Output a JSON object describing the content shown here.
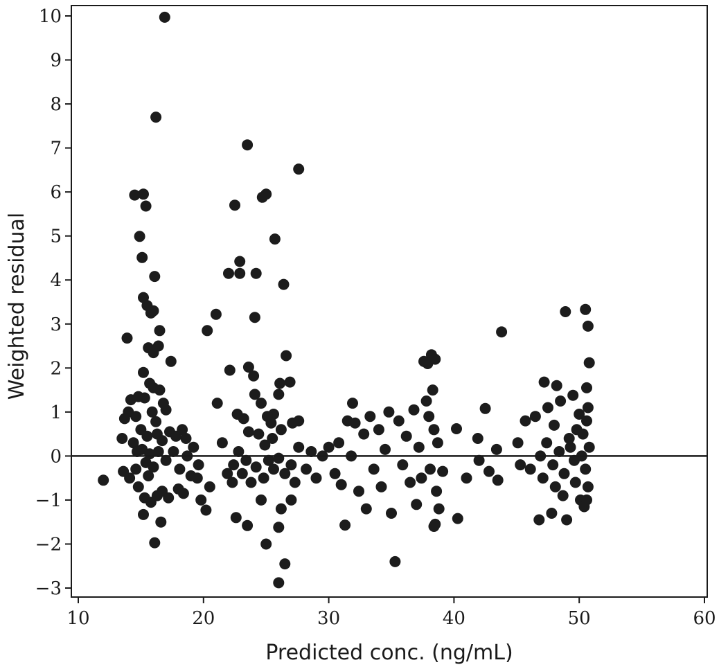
{
  "chart_data": {
    "type": "scatter",
    "xlabel": "Predicted conc. (ng/mL)",
    "ylabel": "Weighted residual",
    "xlim": [
      10,
      60
    ],
    "ylim": [
      -3,
      10
    ],
    "xticks": [
      10,
      20,
      30,
      40,
      50,
      60
    ],
    "yticks": [
      -3,
      -2,
      -1,
      0,
      1,
      2,
      3,
      4,
      5,
      6,
      7,
      8,
      9,
      10
    ],
    "ytick_labels": [
      "−3",
      "−2",
      "−1",
      "0",
      "1",
      "2",
      "3",
      "4",
      "5",
      "6",
      "7",
      "8",
      "9",
      "10"
    ],
    "reference_line_y": 0,
    "grid": false,
    "marker_color": "#1c1c1c",
    "points": [
      [
        12.0,
        -0.55
      ],
      [
        13.5,
        0.4
      ],
      [
        13.7,
        0.85
      ],
      [
        13.9,
        2.68
      ],
      [
        14.2,
        1.28
      ],
      [
        14.4,
        0.3
      ],
      [
        14.6,
        -0.3
      ],
      [
        14.5,
        5.93
      ],
      [
        14.9,
        4.99
      ],
      [
        15.1,
        4.51
      ],
      [
        15.2,
        5.95
      ],
      [
        15.4,
        5.68
      ],
      [
        15.2,
        3.6
      ],
      [
        15.5,
        3.42
      ],
      [
        15.8,
        3.25
      ],
      [
        16.0,
        3.3
      ],
      [
        16.1,
        4.08
      ],
      [
        16.2,
        7.7
      ],
      [
        16.9,
        9.97
      ],
      [
        16.5,
        2.85
      ],
      [
        16.4,
        2.5
      ],
      [
        15.6,
        2.46
      ],
      [
        16.0,
        2.35
      ],
      [
        17.4,
        2.15
      ],
      [
        15.2,
        1.9
      ],
      [
        15.7,
        1.65
      ],
      [
        16.0,
        1.55
      ],
      [
        16.5,
        1.5
      ],
      [
        14.8,
        1.35
      ],
      [
        15.3,
        1.32
      ],
      [
        16.8,
        1.2
      ],
      [
        17.0,
        1.05
      ],
      [
        14.0,
        1.0
      ],
      [
        14.6,
        0.9
      ],
      [
        15.9,
        1.0
      ],
      [
        16.2,
        0.78
      ],
      [
        15.0,
        0.6
      ],
      [
        15.5,
        0.45
      ],
      [
        16.3,
        0.5
      ],
      [
        16.7,
        0.35
      ],
      [
        17.3,
        0.55
      ],
      [
        17.8,
        0.45
      ],
      [
        18.3,
        0.6
      ],
      [
        18.6,
        0.4
      ],
      [
        19.2,
        0.2
      ],
      [
        13.6,
        -0.35
      ],
      [
        14.1,
        -0.5
      ],
      [
        14.8,
        -0.7
      ],
      [
        15.3,
        -0.95
      ],
      [
        15.8,
        -1.05
      ],
      [
        16.3,
        -0.9
      ],
      [
        16.7,
        -0.8
      ],
      [
        17.2,
        -0.95
      ],
      [
        16.6,
        -1.5
      ],
      [
        15.2,
        -1.33
      ],
      [
        16.1,
        -1.97
      ],
      [
        18.0,
        -0.75
      ],
      [
        18.4,
        -0.85
      ],
      [
        19.0,
        -0.45
      ],
      [
        19.5,
        -0.5
      ],
      [
        15.1,
        0.15
      ],
      [
        15.4,
        -0.15
      ],
      [
        15.7,
        0.05
      ],
      [
        16.0,
        -0.25
      ],
      [
        15.6,
        -0.45
      ],
      [
        14.7,
        0.1
      ],
      [
        16.4,
        0.1
      ],
      [
        17.0,
        -0.1
      ],
      [
        17.6,
        0.1
      ],
      [
        18.1,
        -0.3
      ],
      [
        18.7,
        0.0
      ],
      [
        19.6,
        -0.2
      ],
      [
        19.8,
        -1.0
      ],
      [
        20.2,
        -1.23
      ],
      [
        20.5,
        -0.7
      ],
      [
        20.3,
        2.85
      ],
      [
        21.0,
        3.22
      ],
      [
        21.1,
        1.2
      ],
      [
        21.5,
        0.3
      ],
      [
        21.9,
        -0.4
      ],
      [
        22.3,
        -0.6
      ],
      [
        22.1,
        1.95
      ],
      [
        22.0,
        4.15
      ],
      [
        22.5,
        5.7
      ],
      [
        22.9,
        4.42
      ],
      [
        22.9,
        4.15
      ],
      [
        23.5,
        7.07
      ],
      [
        24.2,
        4.15
      ],
      [
        24.1,
        3.15
      ],
      [
        24.7,
        5.88
      ],
      [
        25.0,
        5.95
      ],
      [
        25.7,
        4.93
      ],
      [
        26.4,
        3.9
      ],
      [
        26.6,
        2.28
      ],
      [
        26.9,
        1.68
      ],
      [
        26.1,
        1.65
      ],
      [
        26.0,
        1.4
      ],
      [
        25.6,
        0.95
      ],
      [
        27.1,
        0.75
      ],
      [
        27.6,
        6.52
      ],
      [
        27.6,
        0.8
      ],
      [
        23.6,
        2.02
      ],
      [
        24.0,
        1.82
      ],
      [
        24.1,
        1.4
      ],
      [
        24.6,
        1.2
      ],
      [
        25.1,
        0.9
      ],
      [
        25.4,
        0.75
      ],
      [
        22.7,
        0.95
      ],
      [
        23.2,
        0.85
      ],
      [
        23.6,
        0.55
      ],
      [
        24.4,
        0.5
      ],
      [
        24.9,
        0.25
      ],
      [
        25.5,
        0.4
      ],
      [
        26.2,
        0.6
      ],
      [
        22.6,
        -1.4
      ],
      [
        23.5,
        -1.58
      ],
      [
        24.6,
        -1.0
      ],
      [
        25.0,
        -2.0
      ],
      [
        26.0,
        -1.62
      ],
      [
        26.2,
        -1.2
      ],
      [
        26.5,
        -2.45
      ],
      [
        26.0,
        -2.88
      ],
      [
        27.0,
        -1.0
      ],
      [
        27.3,
        -0.6
      ],
      [
        22.4,
        -0.2
      ],
      [
        22.8,
        0.1
      ],
      [
        23.1,
        -0.4
      ],
      [
        23.4,
        -0.1
      ],
      [
        23.8,
        -0.6
      ],
      [
        24.2,
        -0.25
      ],
      [
        24.8,
        -0.5
      ],
      [
        25.2,
        -0.1
      ],
      [
        25.6,
        -0.3
      ],
      [
        26.0,
        -0.05
      ],
      [
        26.5,
        -0.4
      ],
      [
        27.0,
        -0.2
      ],
      [
        27.6,
        0.2
      ],
      [
        28.2,
        -0.3
      ],
      [
        28.6,
        0.1
      ],
      [
        29.0,
        -0.5
      ],
      [
        29.5,
        0.0
      ],
      [
        30.0,
        0.2
      ],
      [
        30.5,
        -0.4
      ],
      [
        30.8,
        0.3
      ],
      [
        31.0,
        -0.65
      ],
      [
        31.3,
        -1.57
      ],
      [
        31.5,
        0.8
      ],
      [
        31.9,
        1.2
      ],
      [
        32.1,
        0.75
      ],
      [
        31.8,
        0.0
      ],
      [
        32.4,
        -0.8
      ],
      [
        32.8,
        0.5
      ],
      [
        33.0,
        -1.2
      ],
      [
        33.3,
        0.9
      ],
      [
        33.6,
        -0.3
      ],
      [
        34.0,
        0.6
      ],
      [
        34.2,
        -0.7
      ],
      [
        34.5,
        0.15
      ],
      [
        34.8,
        1.0
      ],
      [
        35.0,
        -1.3
      ],
      [
        35.3,
        -2.4
      ],
      [
        35.6,
        0.8
      ],
      [
        35.9,
        -0.2
      ],
      [
        36.2,
        0.45
      ],
      [
        36.5,
        -0.6
      ],
      [
        36.8,
        1.05
      ],
      [
        37.0,
        -1.1
      ],
      [
        37.2,
        0.2
      ],
      [
        37.4,
        -0.5
      ],
      [
        37.6,
        2.15
      ],
      [
        37.9,
        2.1
      ],
      [
        38.2,
        2.3
      ],
      [
        38.5,
        2.2
      ],
      [
        38.3,
        1.5
      ],
      [
        37.8,
        1.25
      ],
      [
        38.0,
        0.9
      ],
      [
        38.4,
        0.6
      ],
      [
        38.7,
        0.3
      ],
      [
        38.1,
        -0.3
      ],
      [
        38.6,
        -0.8
      ],
      [
        38.8,
        -1.2
      ],
      [
        38.5,
        -1.55
      ],
      [
        38.4,
        -1.6
      ],
      [
        39.1,
        -0.35
      ],
      [
        40.2,
        0.62
      ],
      [
        40.3,
        -1.42
      ],
      [
        41.0,
        -0.5
      ],
      [
        41.9,
        0.4
      ],
      [
        42.0,
        -0.1
      ],
      [
        42.5,
        1.08
      ],
      [
        42.8,
        -0.35
      ],
      [
        43.4,
        0.15
      ],
      [
        43.5,
        -0.55
      ],
      [
        43.8,
        2.82
      ],
      [
        45.1,
        0.3
      ],
      [
        45.3,
        -0.2
      ],
      [
        45.7,
        0.8
      ],
      [
        46.1,
        -0.3
      ],
      [
        46.5,
        0.9
      ],
      [
        46.8,
        -1.45
      ],
      [
        47.2,
        1.68
      ],
      [
        47.5,
        1.1
      ],
      [
        47.8,
        -1.3
      ],
      [
        48.0,
        0.7
      ],
      [
        48.2,
        1.6
      ],
      [
        48.5,
        1.25
      ],
      [
        48.7,
        -0.9
      ],
      [
        48.9,
        3.28
      ],
      [
        49.0,
        -1.45
      ],
      [
        49.3,
        0.2
      ],
      [
        49.5,
        1.38
      ],
      [
        49.7,
        -0.6
      ],
      [
        50.0,
        0.95
      ],
      [
        50.1,
        -1.0
      ],
      [
        50.3,
        0.5
      ],
      [
        50.5,
        3.33
      ],
      [
        50.6,
        1.55
      ],
      [
        50.7,
        2.95
      ],
      [
        50.8,
        2.12
      ],
      [
        50.7,
        1.1
      ],
      [
        50.6,
        0.8
      ],
      [
        50.8,
        0.2
      ],
      [
        50.5,
        -0.3
      ],
      [
        50.7,
        -0.7
      ],
      [
        50.6,
        -1.0
      ],
      [
        50.4,
        -1.15
      ],
      [
        47.4,
        0.3
      ],
      [
        47.9,
        -0.2
      ],
      [
        48.4,
        0.1
      ],
      [
        48.8,
        -0.4
      ],
      [
        49.2,
        0.4
      ],
      [
        49.6,
        -0.1
      ],
      [
        50.2,
        0.0
      ],
      [
        47.1,
        -0.5
      ],
      [
        46.9,
        0.0
      ],
      [
        48.1,
        -0.7
      ],
      [
        49.8,
        0.6
      ]
    ]
  }
}
